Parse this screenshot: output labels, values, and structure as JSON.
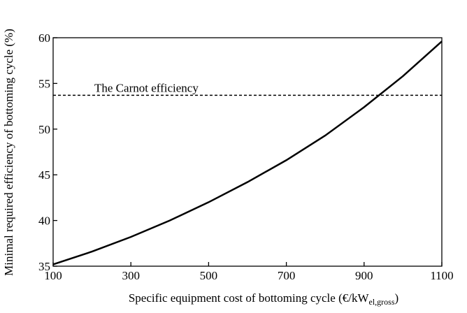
{
  "chart_data": {
    "type": "line",
    "xlabel": {
      "main": "Specific equipment cost of bottoming cycle (€/kW",
      "sub": "el,gross",
      "end": ")"
    },
    "ylabel": "Minimal required efficiency of bottoming cycle (%)",
    "x": [
      100,
      200,
      300,
      400,
      500,
      600,
      700,
      800,
      900,
      1000,
      1100
    ],
    "series": [
      {
        "color": "#000000",
        "values": [
          35.2,
          36.6,
          38.2,
          40.0,
          42.0,
          44.2,
          46.6,
          49.3,
          52.4,
          55.8,
          59.6
        ]
      }
    ],
    "reference_line": {
      "value": 53.7,
      "label": "The Carnot efficiency"
    },
    "xlim": [
      100,
      1100
    ],
    "ylim": [
      35,
      60
    ],
    "xticks": [
      100,
      300,
      500,
      700,
      900,
      1100
    ],
    "yticks": [
      35,
      40,
      45,
      50,
      55,
      60
    ]
  }
}
